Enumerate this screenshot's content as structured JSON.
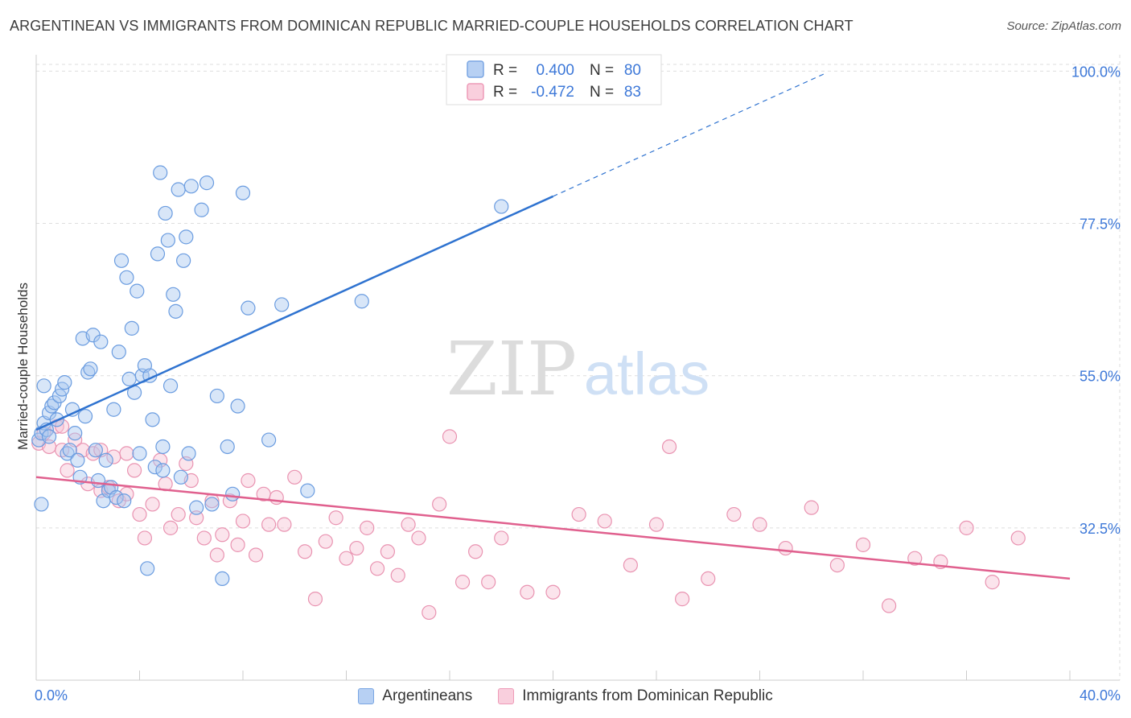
{
  "header": {
    "title": "ARGENTINEAN VS IMMIGRANTS FROM DOMINICAN REPUBLIC MARRIED-COUPLE HOUSEHOLDS CORRELATION CHART",
    "source": "Source: ZipAtlas.com"
  },
  "watermark": {
    "zip": "ZIP",
    "atlas": "atlas"
  },
  "legend": {
    "blue": {
      "r_label": "R =",
      "r_value": "0.400",
      "n_label": "N =",
      "n_value": "80"
    },
    "pink": {
      "r_label": "R =",
      "r_value": "-0.472",
      "n_label": "N =",
      "n_value": "83"
    }
  },
  "bottom_legend": {
    "blue_label": "Argentineans",
    "pink_label": "Immigrants from Dominican Republic"
  },
  "colors": {
    "blue_fill": "#a9c8f0",
    "blue_stroke": "#6a9ce0",
    "blue_line": "#2f73d0",
    "pink_fill": "#f7c3d4",
    "pink_stroke": "#e993b1",
    "pink_line": "#e0608e",
    "axis_label": "#3d78d8",
    "grid": "#dddddd"
  },
  "chart_data": {
    "type": "scatter",
    "title": "ARGENTINEAN VS IMMIGRANTS FROM DOMINICAN REPUBLIC MARRIED-COUPLE HOUSEHOLDS CORRELATION CHART",
    "xlabel": "",
    "ylabel": "Married-couple Households",
    "xlim": [
      0,
      40
    ],
    "ylim": [
      10,
      101
    ],
    "x_tick_labels": [
      "0.0%",
      "40.0%"
    ],
    "y_ticks": [
      32.5,
      55.0,
      77.5,
      100.0
    ],
    "y_tick_labels": [
      "32.5%",
      "55.0%",
      "77.5%",
      "100.0%"
    ],
    "grid": true,
    "legend_position": "top-center",
    "series": [
      {
        "name": "Argentineans",
        "r": 0.4,
        "n": 80,
        "trend": {
          "x0": 0,
          "y0": 47.0,
          "x1": 20,
          "y1": 81.5,
          "dash_to_x": 30.5
        },
        "x": [
          0.1,
          0.2,
          0.3,
          0.4,
          0.5,
          0.6,
          0.7,
          0.8,
          0.9,
          1.0,
          1.1,
          1.2,
          1.3,
          1.4,
          1.5,
          1.6,
          1.7,
          1.8,
          1.9,
          2.0,
          2.1,
          2.2,
          2.3,
          2.4,
          2.5,
          2.6,
          2.7,
          2.8,
          2.9,
          3.0,
          3.1,
          3.2,
          3.3,
          3.4,
          3.5,
          3.6,
          3.7,
          3.8,
          3.9,
          4.0,
          4.1,
          4.2,
          4.3,
          4.4,
          4.5,
          4.6,
          4.7,
          4.8,
          4.9,
          5.0,
          5.1,
          5.2,
          5.3,
          5.4,
          5.5,
          5.6,
          5.7,
          5.8,
          5.9,
          6.0,
          6.2,
          6.4,
          6.6,
          6.8,
          7.0,
          7.2,
          7.4,
          7.6,
          7.8,
          8.0,
          8.2,
          9.0,
          9.5,
          10.5,
          12.6,
          18.0,
          0.3,
          0.5,
          0.2,
          4.9
        ],
        "y": [
          45.5,
          46.5,
          48.0,
          47.0,
          49.5,
          50.5,
          51.0,
          48.5,
          52.0,
          53.0,
          54.0,
          43.5,
          44.0,
          50.0,
          46.5,
          42.5,
          40.0,
          60.5,
          49.0,
          55.5,
          56.0,
          61.0,
          44.0,
          39.5,
          60.0,
          36.5,
          42.5,
          38.0,
          38.5,
          50.0,
          37.0,
          58.5,
          72.0,
          36.5,
          69.5,
          54.5,
          62.0,
          52.5,
          67.5,
          43.5,
          55.0,
          56.5,
          26.5,
          55.0,
          48.5,
          41.5,
          73.0,
          85.0,
          44.5,
          79.0,
          75.0,
          53.5,
          67.0,
          64.5,
          82.5,
          40.0,
          72.0,
          75.5,
          43.5,
          83.0,
          35.5,
          79.5,
          83.5,
          36.0,
          52.0,
          25.0,
          44.5,
          37.5,
          50.5,
          82.0,
          65.0,
          45.5,
          65.5,
          38.0,
          66.0,
          80.0,
          53.5,
          46.0,
          36.0,
          41.0
        ]
      },
      {
        "name": "Immigrants from Dominican Republic",
        "r": -0.472,
        "n": 83,
        "trend": {
          "x0": 0,
          "y0": 40.0,
          "x1": 40,
          "y1": 25.0
        },
        "x": [
          0.1,
          0.3,
          0.5,
          0.8,
          1.0,
          1.2,
          1.5,
          1.8,
          2.0,
          2.2,
          2.5,
          2.8,
          3.0,
          3.2,
          3.5,
          3.8,
          4.0,
          4.2,
          4.5,
          4.8,
          5.0,
          5.2,
          5.5,
          5.8,
          6.0,
          6.2,
          6.5,
          6.8,
          7.0,
          7.2,
          7.5,
          7.8,
          8.0,
          8.2,
          8.5,
          8.8,
          9.0,
          9.3,
          9.6,
          10.0,
          10.4,
          10.8,
          11.2,
          11.6,
          12.0,
          12.4,
          12.8,
          13.2,
          13.6,
          14.0,
          14.4,
          14.8,
          15.2,
          15.6,
          16.0,
          16.5,
          17.0,
          17.5,
          18.0,
          19.0,
          20.0,
          21.0,
          22.0,
          23.0,
          24.0,
          25.0,
          26.0,
          27.0,
          28.0,
          29.0,
          30.0,
          31.0,
          32.0,
          33.0,
          34.0,
          35.0,
          36.0,
          37.0,
          38.0,
          24.5,
          1.0,
          2.5,
          3.5
        ],
        "y": [
          45.0,
          46.5,
          44.5,
          47.5,
          44.0,
          41.0,
          45.5,
          44.0,
          39.0,
          43.5,
          38.0,
          38.5,
          43.0,
          36.5,
          37.5,
          41.0,
          34.5,
          31.0,
          36.0,
          42.5,
          39.0,
          32.5,
          34.5,
          42.0,
          39.5,
          34.0,
          31.0,
          36.5,
          28.5,
          31.5,
          36.5,
          30.0,
          33.5,
          39.5,
          28.5,
          37.5,
          33.0,
          37.0,
          33.0,
          40.0,
          29.0,
          22.0,
          30.5,
          34.0,
          28.0,
          29.5,
          32.5,
          26.5,
          29.0,
          25.5,
          33.0,
          31.0,
          20.0,
          36.0,
          46.0,
          24.5,
          29.0,
          24.5,
          31.0,
          23.0,
          23.0,
          34.5,
          33.5,
          27.0,
          33.0,
          22.0,
          25.0,
          34.5,
          33.0,
          29.5,
          35.5,
          27.0,
          30.0,
          21.0,
          28.0,
          27.5,
          32.5,
          24.5,
          31.0,
          44.5,
          47.5,
          44.0,
          43.5
        ]
      }
    ]
  }
}
